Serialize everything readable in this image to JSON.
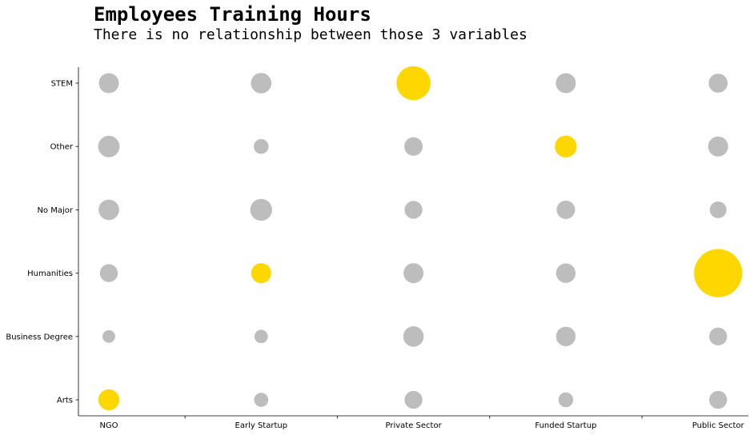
{
  "chart_data": {
    "type": "scatter",
    "title": "Employees Training Hours",
    "subtitle": "There is no relationship between those 3 variables",
    "xlabel": "",
    "ylabel": "",
    "categories_x": [
      "NGO",
      "Early Startup",
      "Private Sector",
      "Funded Startup",
      "Public Sector"
    ],
    "categories_y": [
      "STEM",
      "Other",
      "No Major",
      "Humanities",
      "Business Degree",
      "Arts"
    ],
    "size_meaning": "relative bubble area (training hours)",
    "grid": false,
    "highlight_color": "#FFD700",
    "base_color": "#BDBDBD",
    "points": [
      {
        "x": "NGO",
        "y": "STEM",
        "size": 1.0,
        "highlight": false
      },
      {
        "x": "Early Startup",
        "y": "STEM",
        "size": 1.05,
        "highlight": false
      },
      {
        "x": "Private Sector",
        "y": "STEM",
        "size": 2.9,
        "highlight": true
      },
      {
        "x": "Funded Startup",
        "y": "STEM",
        "size": 1.0,
        "highlight": false
      },
      {
        "x": "Public Sector",
        "y": "STEM",
        "size": 0.9,
        "highlight": false
      },
      {
        "x": "NGO",
        "y": "Other",
        "size": 1.15,
        "highlight": false
      },
      {
        "x": "Early Startup",
        "y": "Other",
        "size": 0.55,
        "highlight": false
      },
      {
        "x": "Private Sector",
        "y": "Other",
        "size": 0.85,
        "highlight": false
      },
      {
        "x": "Funded Startup",
        "y": "Other",
        "size": 1.2,
        "highlight": true
      },
      {
        "x": "Public Sector",
        "y": "Other",
        "size": 1.0,
        "highlight": false
      },
      {
        "x": "NGO",
        "y": "No Major",
        "size": 1.05,
        "highlight": false
      },
      {
        "x": "Early Startup",
        "y": "No Major",
        "size": 1.2,
        "highlight": false
      },
      {
        "x": "Private Sector",
        "y": "No Major",
        "size": 0.8,
        "highlight": false
      },
      {
        "x": "Funded Startup",
        "y": "No Major",
        "size": 0.85,
        "highlight": false
      },
      {
        "x": "Public Sector",
        "y": "No Major",
        "size": 0.7,
        "highlight": false
      },
      {
        "x": "NGO",
        "y": "Humanities",
        "size": 0.8,
        "highlight": false
      },
      {
        "x": "Early Startup",
        "y": "Humanities",
        "size": 1.0,
        "highlight": true
      },
      {
        "x": "Private Sector",
        "y": "Humanities",
        "size": 1.0,
        "highlight": false
      },
      {
        "x": "Funded Startup",
        "y": "Humanities",
        "size": 0.95,
        "highlight": false
      },
      {
        "x": "Public Sector",
        "y": "Humanities",
        "size": 5.8,
        "highlight": true
      },
      {
        "x": "NGO",
        "y": "Business Degree",
        "size": 0.4,
        "highlight": false
      },
      {
        "x": "Early Startup",
        "y": "Business Degree",
        "size": 0.45,
        "highlight": false
      },
      {
        "x": "Private Sector",
        "y": "Business Degree",
        "size": 1.05,
        "highlight": false
      },
      {
        "x": "Funded Startup",
        "y": "Business Degree",
        "size": 0.95,
        "highlight": false
      },
      {
        "x": "Public Sector",
        "y": "Business Degree",
        "size": 0.8,
        "highlight": false
      },
      {
        "x": "NGO",
        "y": "Arts",
        "size": 1.1,
        "highlight": true
      },
      {
        "x": "Early Startup",
        "y": "Arts",
        "size": 0.5,
        "highlight": false
      },
      {
        "x": "Private Sector",
        "y": "Arts",
        "size": 0.8,
        "highlight": false
      },
      {
        "x": "Funded Startup",
        "y": "Arts",
        "size": 0.55,
        "highlight": false
      },
      {
        "x": "Public Sector",
        "y": "Arts",
        "size": 0.8,
        "highlight": false
      }
    ]
  }
}
